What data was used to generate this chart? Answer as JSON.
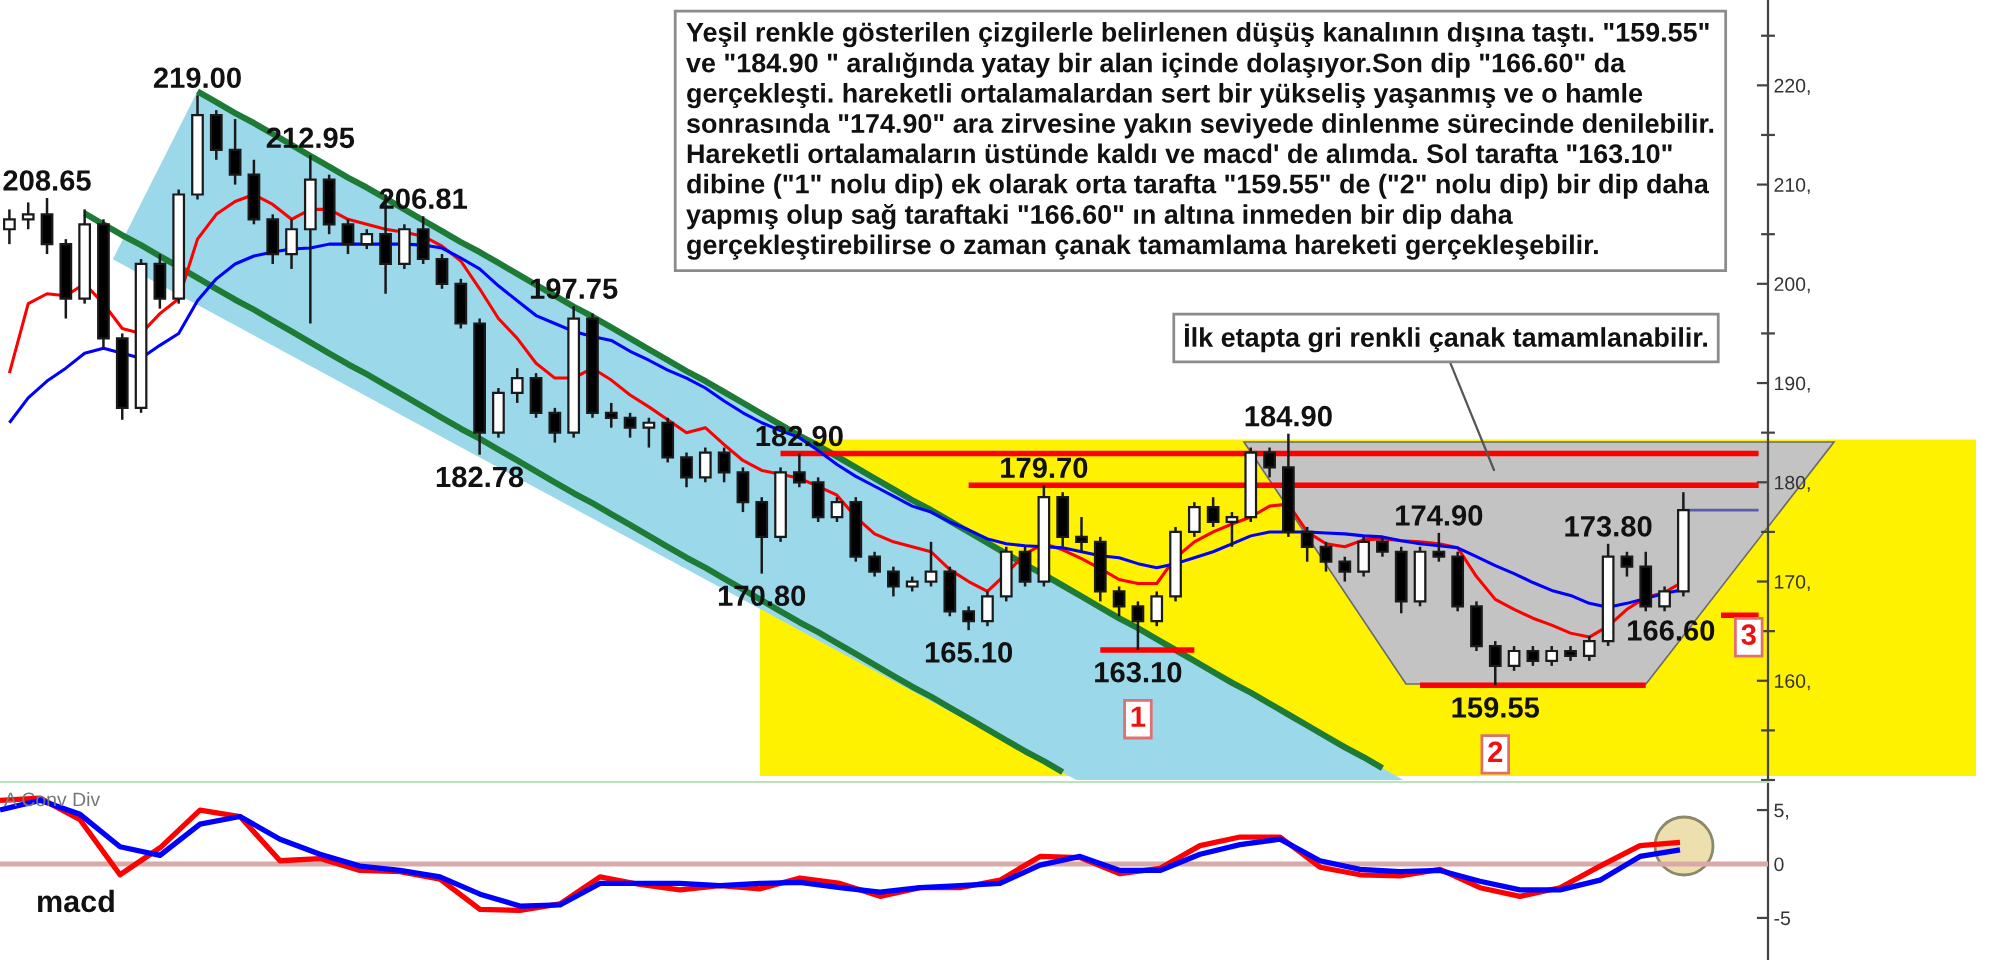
{
  "chart_data": [
    {
      "type": "candlestick",
      "categories": [
        null,
        null,
        null,
        null,
        null,
        null,
        null,
        null,
        null,
        null,
        null,
        null,
        null,
        null,
        null,
        null,
        null,
        null,
        null,
        null,
        null,
        null,
        null,
        null,
        null,
        null,
        null,
        null,
        null,
        null,
        null,
        null,
        null,
        null,
        null,
        null,
        null,
        null,
        null,
        null,
        null,
        null,
        null,
        null,
        null,
        null,
        null,
        null,
        null,
        null,
        null,
        null,
        null,
        null,
        null,
        null,
        null,
        null,
        null,
        null,
        null,
        null,
        null,
        null,
        null,
        null,
        null,
        null,
        null,
        null,
        null,
        null,
        null,
        null,
        null,
        null,
        null,
        null,
        null,
        null,
        null,
        null,
        null,
        null,
        null,
        null,
        null,
        null,
        null,
        null,
        null,
        null,
        null,
        null
      ],
      "ohlc": [
        [
          205.5,
          207.5,
          204.0,
          206.5
        ],
        [
          206.5,
          208.2,
          205.5,
          207.0
        ],
        [
          207.0,
          208.65,
          203.0,
          204.0
        ],
        [
          204.0,
          204.5,
          196.5,
          198.5
        ],
        [
          198.5,
          207.5,
          198.0,
          206.0
        ],
        [
          206.0,
          206.5,
          193.5,
          194.5
        ],
        [
          194.5,
          195.0,
          186.3,
          187.5
        ],
        [
          187.5,
          202.5,
          187.0,
          202.0
        ],
        [
          202.0,
          203.0,
          197.5,
          198.5
        ],
        [
          198.5,
          209.5,
          198.0,
          209.0
        ],
        [
          209.0,
          219.0,
          208.5,
          217.0
        ],
        [
          217.0,
          217.5,
          212.5,
          213.5
        ],
        [
          213.5,
          216.6,
          210.0,
          211.0
        ],
        [
          211.0,
          212.5,
          206.0,
          206.5
        ],
        [
          206.5,
          207.0,
          202.0,
          203.0
        ],
        [
          203.0,
          206.5,
          201.5,
          205.5
        ],
        [
          205.5,
          212.95,
          196.0,
          210.5
        ],
        [
          210.5,
          211.0,
          205.0,
          206.0
        ],
        [
          206.0,
          206.5,
          203.0,
          204.0
        ],
        [
          204.0,
          205.5,
          203.5,
          205.0
        ],
        [
          205.0,
          209.0,
          199.0,
          202.0
        ],
        [
          202.0,
          206.0,
          201.5,
          205.5
        ],
        [
          205.5,
          206.81,
          202.0,
          202.5
        ],
        [
          202.5,
          203.0,
          199.5,
          200.0
        ],
        [
          200.0,
          200.5,
          195.5,
          196.0
        ],
        [
          196.0,
          196.5,
          182.78,
          185.0
        ],
        [
          185.0,
          189.5,
          184.5,
          189.0
        ],
        [
          189.0,
          191.5,
          188.0,
          190.5
        ],
        [
          190.5,
          191.0,
          186.5,
          187.0
        ],
        [
          187.0,
          187.5,
          184.0,
          185.0
        ],
        [
          185.0,
          197.75,
          184.5,
          196.5
        ],
        [
          196.5,
          197.0,
          186.5,
          187.0
        ],
        [
          187.0,
          188.0,
          185.5,
          186.5
        ],
        [
          186.5,
          187.0,
          184.5,
          185.5
        ],
        [
          185.5,
          186.5,
          183.5,
          186.0
        ],
        [
          186.0,
          186.5,
          182.0,
          182.5
        ],
        [
          182.5,
          183.0,
          179.5,
          180.5
        ],
        [
          180.5,
          183.5,
          180.0,
          183.0
        ],
        [
          183.0,
          183.5,
          180.0,
          181.0
        ],
        [
          181.0,
          181.5,
          177.0,
          178.0
        ],
        [
          178.0,
          178.5,
          170.8,
          174.5
        ],
        [
          174.5,
          181.5,
          174.0,
          181.0
        ],
        [
          181.0,
          182.9,
          179.5,
          180.0
        ],
        [
          180.0,
          180.5,
          176.0,
          176.5
        ],
        [
          176.5,
          178.5,
          176.0,
          178.0
        ],
        [
          178.0,
          178.5,
          172.0,
          172.5
        ],
        [
          172.5,
          173.0,
          170.5,
          171.0
        ],
        [
          171.0,
          171.5,
          168.5,
          169.5
        ],
        [
          169.5,
          170.5,
          169.0,
          170.0
        ],
        [
          170.0,
          174.0,
          169.5,
          171.0
        ],
        [
          171.0,
          171.5,
          166.5,
          167.0
        ],
        [
          167.0,
          167.5,
          165.1,
          166.0
        ],
        [
          166.0,
          169.0,
          165.5,
          168.5
        ],
        [
          168.5,
          173.5,
          168.0,
          173.0
        ],
        [
          173.0,
          173.5,
          169.5,
          170.0
        ],
        [
          170.0,
          179.7,
          169.5,
          178.5
        ],
        [
          178.5,
          179.0,
          173.5,
          174.5
        ],
        [
          174.5,
          176.5,
          173.0,
          174.0
        ],
        [
          174.0,
          174.5,
          168.0,
          169.0
        ],
        [
          169.0,
          169.5,
          166.5,
          167.5
        ],
        [
          167.5,
          168.0,
          163.1,
          166.0
        ],
        [
          166.0,
          169.0,
          165.5,
          168.5
        ],
        [
          168.5,
          175.5,
          168.0,
          175.0
        ],
        [
          175.0,
          178.0,
          174.5,
          177.5
        ],
        [
          177.5,
          178.5,
          175.5,
          176.0
        ],
        [
          176.0,
          177.0,
          173.5,
          176.5
        ],
        [
          176.5,
          183.5,
          176.0,
          183.0
        ],
        [
          183.0,
          183.5,
          180.5,
          181.5
        ],
        [
          181.5,
          184.9,
          174.5,
          175.0
        ],
        [
          175.0,
          175.5,
          172.0,
          173.5
        ],
        [
          173.5,
          174.0,
          171.0,
          172.0
        ],
        [
          172.0,
          172.5,
          170.0,
          171.0
        ],
        [
          171.0,
          174.5,
          170.5,
          174.0
        ],
        [
          174.0,
          174.5,
          172.5,
          173.0
        ],
        [
          173.0,
          173.5,
          166.8,
          168.0
        ],
        [
          168.0,
          173.5,
          167.5,
          173.0
        ],
        [
          173.0,
          174.9,
          172.0,
          172.5
        ],
        [
          172.5,
          173.0,
          167.0,
          167.5
        ],
        [
          167.5,
          168.0,
          163.0,
          163.5
        ],
        [
          163.5,
          164.0,
          159.55,
          161.5
        ],
        [
          161.5,
          163.5,
          161.0,
          163.0
        ],
        [
          163.0,
          163.5,
          161.5,
          162.0
        ],
        [
          162.0,
          163.5,
          161.5,
          163.0
        ],
        [
          163.0,
          163.5,
          162.0,
          162.5
        ],
        [
          162.5,
          164.5,
          162.0,
          164.0
        ],
        [
          164.0,
          173.8,
          163.5,
          172.5
        ],
        [
          172.5,
          173.0,
          170.5,
          171.5
        ],
        [
          171.5,
          173.0,
          167.0,
          167.5
        ],
        [
          167.5,
          169.5,
          167.0,
          169.0
        ],
        [
          169.0,
          179.0,
          168.5,
          177.2
        ],
        null,
        null,
        null,
        null
      ],
      "series": [
        {
          "type": "line",
          "color": "#ff0000",
          "values": [
            191,
            198,
            199,
            198.8,
            200,
            198,
            195.5,
            195,
            197,
            198.5,
            204.5,
            207,
            208.3,
            209,
            208,
            206.5,
            207.5,
            207.5,
            206.5,
            206,
            205.5,
            205.2,
            204.8,
            203.8,
            202.3,
            199.5,
            196.5,
            194.5,
            192,
            190.5,
            190.5,
            191.5,
            190.3,
            188.8,
            187.6,
            186.3,
            185,
            185.5,
            183.8,
            182.2,
            181.2,
            180.8,
            180.4,
            179.6,
            178.7,
            176.5,
            174.8,
            174,
            173.5,
            173,
            171.2,
            170,
            169,
            170.8,
            172.8,
            173.8,
            173.2,
            172.3,
            171.3,
            170.2,
            169.8,
            169.8,
            172.4,
            174,
            175,
            175.8,
            176.5,
            177.6,
            177.8,
            175,
            173.8,
            173.5,
            174.2,
            174.3,
            174.1,
            174,
            173.8,
            173.4,
            170.5,
            168.2,
            167.2,
            166.3,
            165.6,
            164.8,
            164.4,
            165.5,
            167.2,
            168.4,
            168.9,
            170,
            null,
            null,
            null,
            null
          ]
        },
        {
          "type": "line",
          "color": "#0000ff",
          "values": [
            186,
            188.5,
            190.2,
            191.5,
            193,
            193.5,
            193,
            192.5,
            193.8,
            195,
            198.3,
            200.5,
            202,
            202.8,
            203.2,
            203.5,
            203.6,
            204,
            204,
            204,
            204,
            204,
            203.9,
            203.6,
            202.6,
            201.5,
            199.8,
            198.3,
            196.8,
            196,
            195.2,
            194.7,
            194.3,
            193.2,
            192.3,
            191.3,
            190.5,
            189.5,
            188.2,
            187,
            186,
            185.2,
            184.5,
            183.2,
            181.8,
            180.6,
            179.6,
            178.6,
            177.6,
            177,
            176,
            175.2,
            174.3,
            173.8,
            173.6,
            173.5,
            173.4,
            173,
            172.6,
            172.4,
            171.8,
            171.4,
            171.8,
            172.4,
            173,
            173.8,
            174.6,
            175,
            175,
            175,
            174.9,
            174.8,
            174.6,
            174.5,
            174.1,
            173.8,
            173.6,
            173.4,
            172.5,
            171.6,
            170.8,
            169.9,
            169.1,
            168.6,
            167.8,
            167.4,
            167.8,
            168.3,
            168.8,
            169.2,
            null,
            null,
            null,
            null
          ]
        },
        {
          "type": "line",
          "color": "#1e7b35",
          "values": [
            null,
            null,
            null,
            null,
            null,
            null,
            null,
            null,
            null,
            null,
            219.4,
            218.3,
            217.2,
            216.2,
            215.1,
            214.0,
            212.9,
            211.8,
            210.7,
            209.7,
            208.6,
            207.5,
            206.4,
            205.3,
            204.2,
            203.2,
            202.1,
            201.0,
            199.9,
            198.8,
            197.7,
            196.7,
            195.6,
            194.5,
            193.4,
            192.3,
            191.2,
            190.2,
            189.1,
            188.0,
            186.9,
            185.8,
            184.7,
            183.7,
            182.6,
            181.5,
            180.4,
            179.3,
            178.2,
            177.2,
            176.1,
            175.0,
            173.9,
            172.8,
            171.7,
            170.7,
            169.6,
            168.5,
            167.4,
            166.3,
            165.3,
            164.2,
            163.1,
            162.0,
            160.9,
            159.8,
            158.8,
            157.7,
            156.6,
            155.5,
            154.4,
            153.3,
            152.3,
            151.2,
            null,
            null,
            null,
            null,
            null,
            null,
            null,
            null,
            null,
            null,
            null,
            null,
            null,
            null,
            null,
            null,
            null,
            null,
            null,
            null
          ]
        },
        {
          "type": "line",
          "color": "#1e7b35",
          "values": [
            null,
            null,
            null,
            null,
            207.1,
            206.0,
            204.9,
            203.9,
            202.8,
            201.7,
            200.6,
            199.5,
            198.4,
            197.4,
            196.3,
            195.2,
            194.1,
            193.0,
            191.9,
            190.9,
            189.8,
            188.7,
            187.6,
            186.5,
            185.4,
            184.4,
            183.3,
            182.2,
            181.1,
            180.0,
            178.9,
            177.9,
            176.8,
            175.7,
            174.6,
            173.5,
            172.4,
            171.4,
            170.3,
            169.2,
            168.1,
            167.0,
            165.9,
            164.9,
            163.8,
            162.7,
            161.6,
            160.5,
            159.4,
            158.4,
            157.3,
            156.2,
            155.1,
            154.0,
            152.9,
            151.9,
            150.8,
            null,
            null,
            null,
            null,
            null,
            null,
            null,
            null,
            null,
            null,
            null,
            null,
            null,
            null,
            null,
            null,
            null,
            null,
            null,
            null,
            null,
            null,
            null,
            null,
            null,
            null,
            null,
            null,
            null,
            null,
            null,
            null,
            null,
            null,
            null,
            null,
            null
          ]
        },
        {
          "type": "line",
          "color": "#ff0000",
          "values": [
            null,
            null,
            null,
            null,
            null,
            null,
            null,
            null,
            null,
            null,
            null,
            null,
            null,
            null,
            null,
            null,
            null,
            null,
            null,
            null,
            null,
            null,
            null,
            null,
            null,
            null,
            null,
            null,
            null,
            null,
            null,
            null,
            null,
            null,
            null,
            null,
            null,
            null,
            null,
            null,
            null,
            182.9,
            182.9,
            182.9,
            182.9,
            182.9,
            182.9,
            182.9,
            182.9,
            182.9,
            182.9,
            182.9,
            182.9,
            182.9,
            182.9,
            182.9,
            182.9,
            182.9,
            182.9,
            182.9,
            182.9,
            182.9,
            182.9,
            182.9,
            182.9,
            182.9,
            182.9,
            182.9,
            182.9,
            182.9,
            182.9,
            182.9,
            182.9,
            182.9,
            182.9,
            182.9,
            182.9,
            182.9,
            182.9,
            182.9,
            182.9,
            182.9,
            182.9,
            182.9,
            182.9,
            182.9,
            182.9,
            182.9,
            182.9,
            182.9,
            182.9,
            182.9,
            182.9,
            182.9
          ]
        },
        {
          "type": "line",
          "color": "#ff0000",
          "values": [
            null,
            null,
            null,
            null,
            null,
            null,
            null,
            null,
            null,
            null,
            null,
            null,
            null,
            null,
            null,
            null,
            null,
            null,
            null,
            null,
            null,
            null,
            null,
            null,
            null,
            null,
            null,
            null,
            null,
            null,
            null,
            null,
            null,
            null,
            null,
            null,
            null,
            null,
            null,
            null,
            null,
            null,
            null,
            null,
            null,
            null,
            null,
            null,
            null,
            null,
            null,
            179.7,
            179.7,
            179.7,
            179.7,
            179.7,
            179.7,
            179.7,
            179.7,
            179.7,
            179.7,
            179.7,
            179.7,
            179.7,
            179.7,
            179.7,
            179.7,
            179.7,
            179.7,
            179.7,
            179.7,
            179.7,
            179.7,
            179.7,
            179.7,
            179.7,
            179.7,
            179.7,
            179.7,
            179.7,
            179.7,
            179.7,
            179.7,
            179.7,
            179.7,
            179.7,
            179.7,
            179.7,
            179.7,
            179.7,
            179.7,
            179.7,
            179.7,
            179.7
          ]
        },
        {
          "type": "line",
          "color": "#ff0000",
          "values": [
            null,
            null,
            null,
            null,
            null,
            null,
            null,
            null,
            null,
            null,
            null,
            null,
            null,
            null,
            null,
            null,
            null,
            null,
            null,
            null,
            null,
            null,
            null,
            null,
            null,
            null,
            null,
            null,
            null,
            null,
            null,
            null,
            null,
            null,
            null,
            null,
            null,
            null,
            null,
            null,
            null,
            null,
            null,
            null,
            null,
            null,
            null,
            null,
            null,
            null,
            null,
            null,
            null,
            null,
            null,
            null,
            null,
            null,
            163.1,
            163.1,
            163.1,
            163.1,
            163.1,
            163.1,
            null,
            null,
            null,
            null,
            null,
            null,
            null,
            null,
            null,
            null,
            null,
            null,
            null,
            null,
            null,
            null,
            null,
            null,
            null,
            null,
            null,
            null,
            null,
            null,
            null,
            null,
            null,
            null,
            null,
            null
          ]
        },
        {
          "type": "line",
          "color": "#ff0000",
          "values": [
            null,
            null,
            null,
            null,
            null,
            null,
            null,
            null,
            null,
            null,
            null,
            null,
            null,
            null,
            null,
            null,
            null,
            null,
            null,
            null,
            null,
            null,
            null,
            null,
            null,
            null,
            null,
            null,
            null,
            null,
            null,
            null,
            null,
            null,
            null,
            null,
            null,
            null,
            null,
            null,
            null,
            null,
            null,
            null,
            null,
            null,
            null,
            null,
            null,
            null,
            null,
            null,
            null,
            null,
            null,
            null,
            null,
            null,
            null,
            null,
            null,
            null,
            null,
            null,
            null,
            null,
            null,
            null,
            null,
            null,
            null,
            null,
            null,
            null,
            null,
            159.55,
            159.55,
            159.55,
            159.55,
            159.55,
            159.55,
            159.55,
            159.55,
            159.55,
            159.55,
            159.55,
            159.55,
            159.55,
            null,
            null,
            null,
            null,
            null,
            null
          ]
        },
        {
          "type": "line",
          "color": "#ff0000",
          "values": [
            null,
            null,
            null,
            null,
            null,
            null,
            null,
            null,
            null,
            null,
            null,
            null,
            null,
            null,
            null,
            null,
            null,
            null,
            null,
            null,
            null,
            null,
            null,
            null,
            null,
            null,
            null,
            null,
            null,
            null,
            null,
            null,
            null,
            null,
            null,
            null,
            null,
            null,
            null,
            null,
            null,
            null,
            null,
            null,
            null,
            null,
            null,
            null,
            null,
            null,
            null,
            null,
            null,
            null,
            null,
            null,
            null,
            null,
            null,
            null,
            null,
            null,
            null,
            null,
            null,
            null,
            null,
            null,
            null,
            null,
            null,
            null,
            null,
            null,
            null,
            null,
            null,
            null,
            null,
            null,
            null,
            null,
            null,
            null,
            null,
            null,
            null,
            null,
            null,
            null,
            null,
            166.6,
            166.6,
            166.6
          ]
        },
        {
          "type": "line",
          "color": "#5b5bb0",
          "values": [
            null,
            null,
            null,
            null,
            null,
            null,
            null,
            null,
            null,
            null,
            null,
            null,
            null,
            null,
            null,
            null,
            null,
            null,
            null,
            null,
            null,
            null,
            null,
            null,
            null,
            null,
            null,
            null,
            null,
            null,
            null,
            null,
            null,
            null,
            null,
            null,
            null,
            null,
            null,
            null,
            null,
            null,
            null,
            null,
            null,
            null,
            null,
            null,
            null,
            null,
            null,
            null,
            null,
            null,
            null,
            null,
            null,
            null,
            null,
            null,
            null,
            null,
            null,
            null,
            null,
            null,
            null,
            null,
            null,
            null,
            null,
            null,
            null,
            null,
            null,
            null,
            null,
            null,
            null,
            null,
            null,
            null,
            null,
            null,
            null,
            null,
            null,
            null,
            null,
            177.2,
            177.2,
            177.2,
            177.2,
            177.2
          ]
        }
      ],
      "bands": [
        {
          "axis": "y",
          "from": 150.4,
          "to": 184.3,
          "color": "#fff200"
        }
      ],
      "ylim": [
        150,
        228.6
      ],
      "yticks": [
        {
          "value": 150,
          "label": null
        },
        {
          "value": 155,
          "label": null
        },
        {
          "value": 160,
          "label": "160,"
        },
        {
          "value": 165,
          "label": null
        },
        {
          "value": 170,
          "label": "170,"
        },
        {
          "value": 175,
          "label": null
        },
        {
          "value": 180,
          "label": "180,"
        },
        {
          "value": 185,
          "label": null
        },
        {
          "value": 190,
          "label": "190,"
        },
        {
          "value": 195,
          "label": null
        },
        {
          "value": 200,
          "label": "200,"
        },
        {
          "value": 205,
          "label": null
        },
        {
          "value": 210,
          "label": "210,"
        },
        {
          "value": 215,
          "label": null
        },
        {
          "value": 220,
          "label": "220,"
        },
        {
          "value": 225,
          "label": null
        }
      ],
      "annotations": [
        "Yeşil renkle gösterilen çizgilerle belirlenen düşüş kanalının dışına taştı. \"159.55\"\nve \"184.90 \" aralığında yatay bir alan içinde dolaşıyor.Son dip \"166.60\" da\ngerçekleşti. hareketli ortalamalardan sert bir yükseliş yaşanmış ve o hamle\nsonrasında \"174.90\" ara zirvesine yakın seviyede dinlenme sürecinde denilebilir.\nHareketli ortalamaların üstünde kaldı ve macd' de alımda. Sol tarafta \"163.10\"\ndibine (\"1\" nolu dip) ek olarak orta tarafta \"159.55\" de (\"2\" nolu dip) bir dip daha\nyapmış olup sağ taraftaki \"166.60\" ın altına inmeden bir dip daha\ngerçekleştirebilirse o zaman çanak tamamlama hareketi gerçekleşebilir.",
        "İlk etapta gri renkli çanak tamamlanabilir.",
        {
          "text": "208.65",
          "y": 208.65
        },
        {
          "text": "219.00",
          "y": 219.0
        },
        {
          "text": "212.95",
          "y": 212.95
        },
        {
          "text": "206.81",
          "y": 206.81
        },
        {
          "text": "197.75",
          "y": 197.75
        },
        {
          "text": "182.78",
          "y": 182.78
        },
        {
          "text": "170.80",
          "y": 170.8
        },
        {
          "text": "165.10",
          "y": 165.1
        },
        {
          "text": "184.90",
          "y": 184.9
        },
        {
          "text": "174.90",
          "y": 174.9
        },
        {
          "text": "173.80",
          "y": 173.8
        },
        {
          "text": "182.90",
          "y": 182.9
        },
        {
          "text": "179.70",
          "y": 179.7
        },
        {
          "text": "163.10",
          "y": 163.1
        },
        {
          "text": "1",
          "y": 163.1
        },
        {
          "text": "159.55",
          "y": 159.55
        },
        {
          "text": "2",
          "y": 159.55
        },
        {
          "text": "166.60",
          "y": 166.6
        },
        {
          "text": "3",
          "y": 166.6
        }
      ],
      "tick_labels": "y"
    },
    {
      "type": "line",
      "title": "A Conv Div",
      "categories": [
        null,
        null,
        null,
        null,
        null,
        null,
        null,
        null,
        null,
        null,
        null,
        null,
        null,
        null,
        null,
        null,
        null,
        null,
        null,
        null,
        null,
        null,
        null,
        null,
        null,
        null,
        null,
        null,
        null,
        null,
        null,
        null,
        null,
        null,
        null,
        null,
        null,
        null,
        null,
        null,
        null,
        null,
        null
      ],
      "series": [
        {
          "color": "#ff0000",
          "values": [
            5.9,
            6.1,
            4.1,
            -1.0,
            1.5,
            5.0,
            4.4,
            0.3,
            0.5,
            -0.6,
            -0.7,
            -1.4,
            -4.2,
            -4.3,
            -3.7,
            -1.2,
            -1.9,
            -2.4,
            -2.0,
            -2.3,
            -1.3,
            -1.8,
            -3.0,
            -2.2,
            -2.2,
            -1.5,
            0.7,
            0.6,
            -0.9,
            -0.4,
            1.7,
            2.5,
            2.5,
            -0.3,
            -1.0,
            -1.1,
            -0.5,
            -2.2,
            -3.0,
            -2.2,
            -0.2,
            1.7,
            2.0
          ]
        },
        {
          "color": "#0000ff",
          "values": [
            5.0,
            5.9,
            4.6,
            1.6,
            0.8,
            3.7,
            4.4,
            2.3,
            0.9,
            -0.2,
            -0.6,
            -1.2,
            -2.8,
            -3.9,
            -3.8,
            -1.8,
            -1.8,
            -1.8,
            -2.0,
            -1.8,
            -1.7,
            -2.2,
            -2.6,
            -2.2,
            -2.0,
            -1.8,
            -0.1,
            0.7,
            -0.6,
            -0.6,
            0.9,
            1.8,
            2.3,
            0.3,
            -0.5,
            -0.7,
            -0.6,
            -1.6,
            -2.4,
            -2.4,
            -1.5,
            0.7,
            1.3
          ]
        }
      ],
      "ylim": [
        -8.9,
        7.6
      ],
      "yticks": [
        {
          "value": 5,
          "label": "5,"
        },
        0,
        -5
      ],
      "ref_lines": [
        {
          "axis": "y",
          "value": 0,
          "color": "#d9a9a9"
        }
      ],
      "annotations": [
        "macd"
      ],
      "tick_labels": "y"
    }
  ]
}
